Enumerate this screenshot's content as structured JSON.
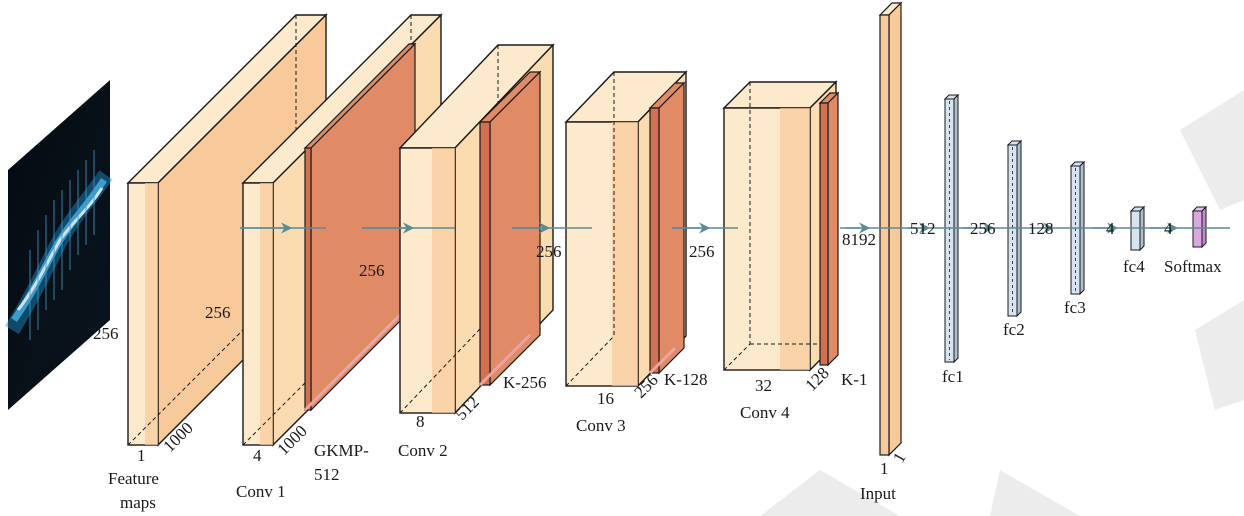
{
  "colors": {
    "light_orange": "#fde9cc",
    "mid_orange": "#f8c99a",
    "red_layer": "#e08a66",
    "red_dark": "#d2714f",
    "pink_edge": "#eea3a3",
    "fc_fill": "#d7e3ef",
    "fc_side": "#aebfd2",
    "softmax": "#d9a8e0",
    "arrow": "#5a8c96",
    "outline": "#1a1a1a"
  },
  "input_image": {
    "icon": "spectrogram-image"
  },
  "feature_maps": {
    "height": "256",
    "width": "1000",
    "channels": "1",
    "label_line1": "Feature",
    "label_line2": "maps"
  },
  "conv1": {
    "height": "256",
    "width": "1000",
    "channels": "4",
    "label": "Conv 1"
  },
  "gkmp": {
    "label_line1": "GKMP-",
    "label_line2": "512"
  },
  "conv2": {
    "height": "256",
    "width": "512",
    "channels": "8",
    "label": "Conv 2",
    "k_label": "K-256"
  },
  "conv3": {
    "height": "256",
    "width": "256",
    "channels": "16",
    "label": "Conv 3",
    "k_label": "K-128"
  },
  "conv4": {
    "height": "256",
    "width": "128",
    "channels": "32",
    "label": "Conv 4",
    "k_label": "K-1"
  },
  "input_vector": {
    "size": "8192",
    "dim1": "1",
    "dim2": "1",
    "label": "Input"
  },
  "fc1": {
    "size": "512",
    "label": "fc1"
  },
  "fc2": {
    "size": "256",
    "label": "fc2"
  },
  "fc3": {
    "size": "128",
    "label": "fc3"
  },
  "fc4": {
    "size": "4",
    "label": "fc4"
  },
  "softmax": {
    "size": "4",
    "label": "Softmax"
  }
}
